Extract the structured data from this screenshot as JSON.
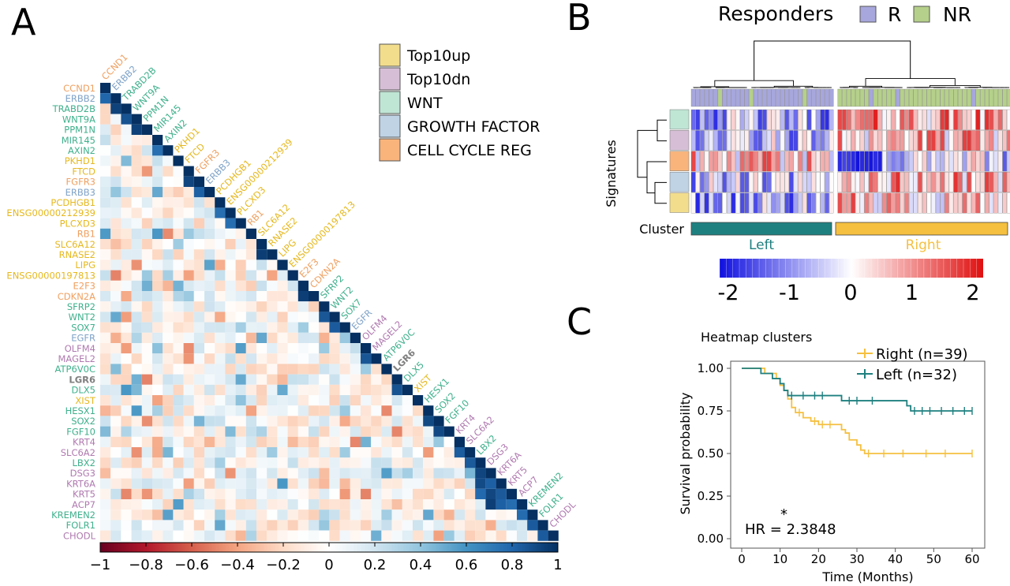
{
  "colors": {
    "top10up": "#f2dd8c",
    "top10dn": "#d6bfd6",
    "wnt": "#bfe5d5",
    "growth_factor": "#bfd3e5",
    "cell_cycle_reg": "#f9b47c",
    "label_up": "#e6b81e",
    "label_dn": "#b07ab0",
    "label_wnt": "#3fb08c",
    "label_gf": "#7fa3c8",
    "label_ccr": "#f0a060",
    "label_lgr6": "#808080",
    "responder_R": "#a7a7dd",
    "responder_NR": "#b5d08a",
    "cluster_left": "#1f8080",
    "cluster_right": "#f5c040",
    "survival_right": "#f5c040",
    "survival_left": "#1f8080"
  },
  "chart_data": [
    {
      "type": "heatmap",
      "panel": "A",
      "genes": [
        {
          "name": "CCND1",
          "group": "ccr"
        },
        {
          "name": "ERBB2",
          "group": "gf"
        },
        {
          "name": "TRABD2B",
          "group": "wnt"
        },
        {
          "name": "WNT9A",
          "group": "wnt"
        },
        {
          "name": "PPM1N",
          "group": "wnt"
        },
        {
          "name": "MIR145",
          "group": "wnt"
        },
        {
          "name": "AXIN2",
          "group": "wnt"
        },
        {
          "name": "PKHD1",
          "group": "up"
        },
        {
          "name": "FTCD",
          "group": "up"
        },
        {
          "name": "FGFR3",
          "group": "ccr"
        },
        {
          "name": "ERBB3",
          "group": "gf"
        },
        {
          "name": "PCDHGB1",
          "group": "up"
        },
        {
          "name": "ENSG00000212939",
          "group": "up"
        },
        {
          "name": "PLCXD3",
          "group": "up"
        },
        {
          "name": "RB1",
          "group": "ccr"
        },
        {
          "name": "SLC6A12",
          "group": "up"
        },
        {
          "name": "RNASE2",
          "group": "up"
        },
        {
          "name": "LIPG",
          "group": "up"
        },
        {
          "name": "ENSG00000197813",
          "group": "up"
        },
        {
          "name": "E2F3",
          "group": "ccr"
        },
        {
          "name": "CDKN2A",
          "group": "ccr"
        },
        {
          "name": "SFRP2",
          "group": "wnt"
        },
        {
          "name": "WNT2",
          "group": "wnt"
        },
        {
          "name": "SOX7",
          "group": "wnt"
        },
        {
          "name": "EGFR",
          "group": "gf"
        },
        {
          "name": "OLFM4",
          "group": "dn"
        },
        {
          "name": "MAGEL2",
          "group": "dn"
        },
        {
          "name": "ATP6V0C",
          "group": "wnt"
        },
        {
          "name": "LGR6",
          "group": "lgr6"
        },
        {
          "name": "DLX5",
          "group": "wnt"
        },
        {
          "name": "XIST",
          "group": "up"
        },
        {
          "name": "HESX1",
          "group": "wnt"
        },
        {
          "name": "SOX2",
          "group": "wnt"
        },
        {
          "name": "FGF10",
          "group": "wnt"
        },
        {
          "name": "KRT4",
          "group": "dn"
        },
        {
          "name": "SLC6A2",
          "group": "dn"
        },
        {
          "name": "LBX2",
          "group": "wnt"
        },
        {
          "name": "DSG3",
          "group": "dn"
        },
        {
          "name": "KRT6A",
          "group": "dn"
        },
        {
          "name": "KRT5",
          "group": "dn"
        },
        {
          "name": "ACP7",
          "group": "dn"
        },
        {
          "name": "KREMEN2",
          "group": "wnt"
        },
        {
          "name": "FOLR1",
          "group": "wnt"
        },
        {
          "name": "CHODL",
          "group": "dn"
        }
      ],
      "colorbar_ticks": [
        "−1",
        "−0.8",
        "−0.6",
        "−0.4",
        "−0.2",
        "0",
        "0.2",
        "0.4",
        "0.6",
        "0.8",
        "1"
      ],
      "colorbar_range": [
        -1,
        1
      ],
      "legend": [
        {
          "label": "Top10up",
          "color_key": "top10up"
        },
        {
          "label": "Top10dn",
          "color_key": "top10dn"
        },
        {
          "label": "WNT",
          "color_key": "wnt"
        },
        {
          "label": "GROWTH FACTOR",
          "color_key": "growth_factor"
        },
        {
          "label": "CELL CYCLE REG",
          "color_key": "cell_cycle_reg"
        }
      ]
    },
    {
      "type": "heatmap",
      "panel": "B",
      "responders_title": "Responders",
      "responders": [
        "R",
        "NR"
      ],
      "row_label": "Signatures",
      "cluster_label": "Cluster",
      "clusters": [
        "Left",
        "Right"
      ],
      "n_samples_left": 32,
      "n_samples_right": 39,
      "signatures": [
        "WNT",
        "Top10dn",
        "CELL CYCLE REG",
        "GROWTH FACTOR",
        "Top10up"
      ],
      "colorbar_ticks": [
        "-2",
        "-1",
        "0",
        "1",
        "2"
      ],
      "colorbar_range": [
        -2,
        2
      ]
    },
    {
      "type": "line",
      "panel": "C",
      "title": "Heatmap clusters",
      "xlabel": "Time (Months)",
      "ylabel": "Survival probability",
      "xlim": [
        0,
        60
      ],
      "ylim": [
        0,
        1
      ],
      "xticks": [
        "0",
        "10",
        "20",
        "30",
        "40",
        "50",
        "60"
      ],
      "yticks": [
        "0.00",
        "0.25",
        "0.50",
        "0.75",
        "1.00"
      ],
      "annotation": "HR = 2.3848",
      "significance": "*",
      "series": [
        {
          "name": "Right (n=39)",
          "color_key": "survival_right",
          "steps": [
            [
              0,
              1.0
            ],
            [
              4,
              1.0
            ],
            [
              6,
              0.97
            ],
            [
              9,
              0.94
            ],
            [
              10,
              0.9
            ],
            [
              11,
              0.87
            ],
            [
              12,
              0.82
            ],
            [
              13,
              0.77
            ],
            [
              14,
              0.74
            ],
            [
              16,
              0.71
            ],
            [
              18,
              0.69
            ],
            [
              20,
              0.67
            ],
            [
              26,
              0.64
            ],
            [
              27,
              0.62
            ],
            [
              28,
              0.58
            ],
            [
              30,
              0.55
            ],
            [
              31,
              0.52
            ],
            [
              32,
              0.5
            ],
            [
              60,
              0.5
            ]
          ],
          "censor": [
            15,
            19,
            21,
            23,
            33,
            37,
            42,
            48,
            53,
            60
          ]
        },
        {
          "name": "Left (n=32)",
          "color_key": "survival_left",
          "steps": [
            [
              0,
              1.0
            ],
            [
              4,
              1.0
            ],
            [
              5,
              0.97
            ],
            [
              8,
              0.94
            ],
            [
              10,
              0.91
            ],
            [
              11,
              0.87
            ],
            [
              12,
              0.84
            ],
            [
              26,
              0.81
            ],
            [
              43,
              0.78
            ],
            [
              44,
              0.75
            ],
            [
              60,
              0.75
            ]
          ],
          "censor": [
            13,
            16,
            19,
            21,
            28,
            30,
            34,
            45,
            47,
            49,
            52,
            55,
            58,
            60
          ]
        }
      ]
    }
  ],
  "panel_labels": [
    "A",
    "B",
    "C"
  ]
}
